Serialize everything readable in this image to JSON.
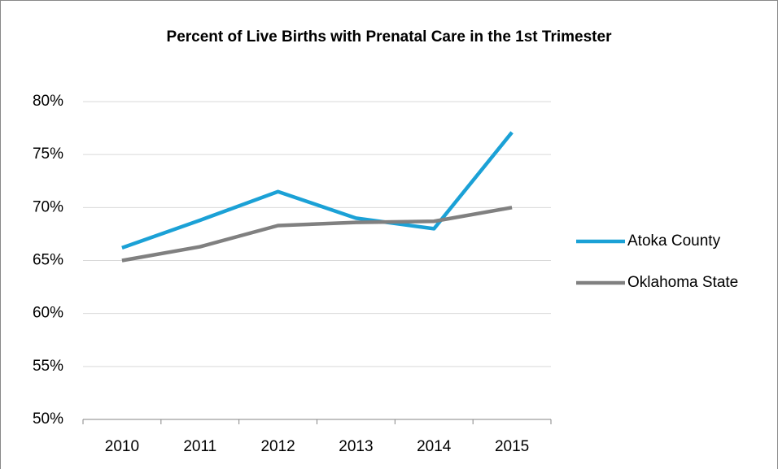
{
  "chart_data": {
    "type": "line",
    "title": "Percent of Live Births with Prenatal Care in the 1st Trimester",
    "categories": [
      "2010",
      "2011",
      "2012",
      "2013",
      "2014",
      "2015"
    ],
    "series": [
      {
        "name": "Atoka County",
        "color": "#1ba1d6",
        "values": [
          66.2,
          68.8,
          71.5,
          69.0,
          68.0,
          77.1
        ]
      },
      {
        "name": "Oklahoma State",
        "color": "#808080",
        "values": [
          65.0,
          66.3,
          68.3,
          68.6,
          68.7,
          70.0
        ]
      }
    ],
    "ylim": [
      50,
      80
    ],
    "yticks": [
      {
        "value": 50,
        "label": "50%"
      },
      {
        "value": 55,
        "label": "55%"
      },
      {
        "value": 60,
        "label": "60%"
      },
      {
        "value": 65,
        "label": "65%"
      },
      {
        "value": 70,
        "label": "70%"
      },
      {
        "value": 75,
        "label": "75%"
      },
      {
        "value": 80,
        "label": "80%"
      }
    ],
    "grid": true,
    "legend": "right"
  }
}
